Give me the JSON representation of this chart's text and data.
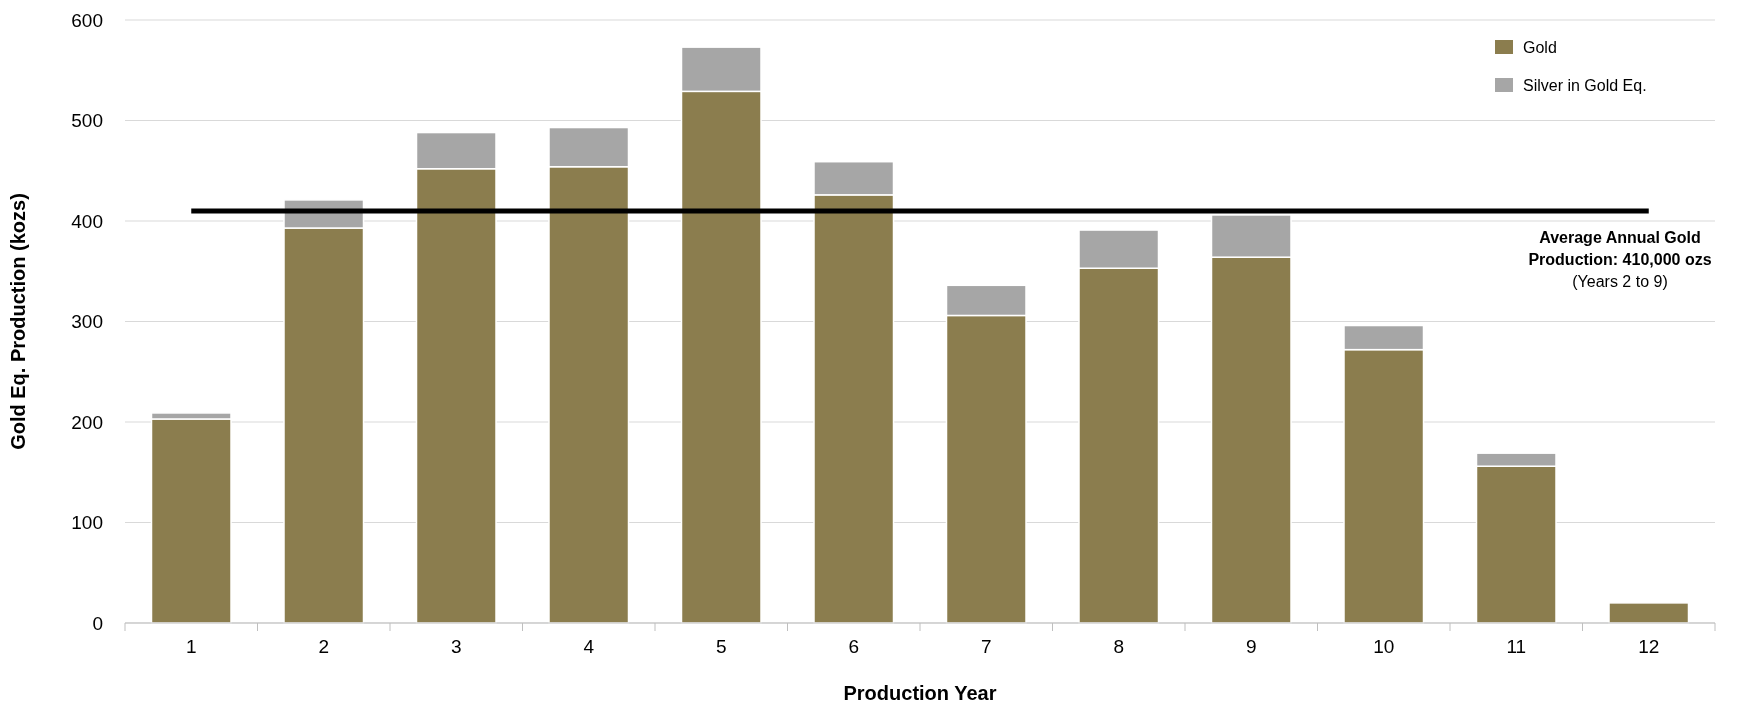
{
  "chart_data": {
    "type": "bar",
    "stacked": true,
    "xlabel": "Production Year",
    "ylabel": "Gold Eq. Production (kozs)",
    "categories": [
      "1",
      "2",
      "3",
      "4",
      "5",
      "6",
      "7",
      "8",
      "9",
      "10",
      "11",
      "12"
    ],
    "series": [
      {
        "name": "Gold",
        "color": "#8b7d4e",
        "values": [
          203,
          393,
          452,
          454,
          529,
          426,
          306,
          353,
          364,
          272,
          156,
          20
        ]
      },
      {
        "name": "Silver in Gold Eq.",
        "color": "#a6a6a6",
        "values": [
          6,
          28,
          36,
          39,
          44,
          33,
          30,
          38,
          42,
          24,
          13,
          0
        ]
      }
    ],
    "ylim": [
      0,
      600
    ],
    "yticks": [
      0,
      100,
      200,
      300,
      400,
      500,
      600
    ],
    "grid": "y",
    "legend": "top right",
    "ref_lines": [
      {
        "axis": "y",
        "value": 410,
        "label": "Average Annual Gold Production: 410,000 ozs",
        "color": "#000000"
      }
    ],
    "annotations": [
      "(Years 2 to 9)"
    ]
  }
}
